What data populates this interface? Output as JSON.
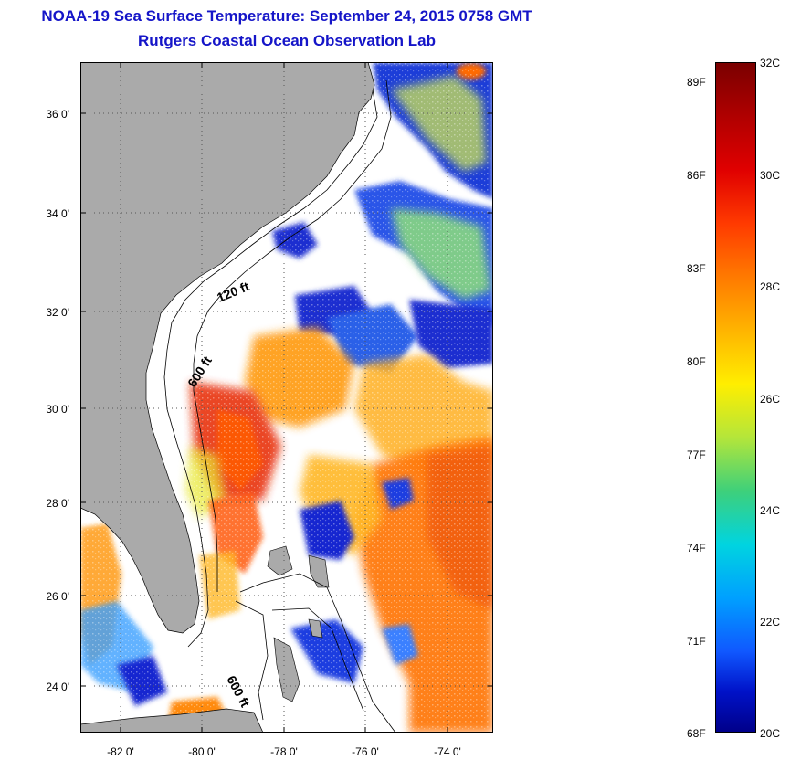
{
  "title": {
    "line1": "NOAA-19 Sea Surface Temperature:  September 24, 2015 0758 GMT",
    "line2": "Rutgers Coastal Ocean Observation Lab"
  },
  "map": {
    "lat_ticks": [
      {
        "value": 36,
        "label": "36 0'"
      },
      {
        "value": 34,
        "label": "34 0'"
      },
      {
        "value": 32,
        "label": "32 0'"
      },
      {
        "value": 30,
        "label": "30 0'"
      },
      {
        "value": 28,
        "label": "28 0'"
      },
      {
        "value": 26,
        "label": "26 0'"
      },
      {
        "value": 24,
        "label": "24 0'"
      }
    ],
    "lon_ticks": [
      {
        "value": -82,
        "label": "-82 0'"
      },
      {
        "value": -80,
        "label": "-80 0'"
      },
      {
        "value": -78,
        "label": "-78 0'"
      },
      {
        "value": -76,
        "label": "-76 0'"
      },
      {
        "value": -74,
        "label": "-74 0'"
      }
    ],
    "contour_labels": [
      "120 ft",
      "600 ft",
      "600 ft"
    ],
    "colors": {
      "land": "#aaaaaa",
      "grid": "#555555"
    }
  },
  "colorbar": {
    "celsius_labels": [
      "32C",
      "30C",
      "28C",
      "26C",
      "24C",
      "22C",
      "20C"
    ],
    "fahrenheit_labels": [
      "89F",
      "86F",
      "83F",
      "80F",
      "77F",
      "74F",
      "71F",
      "68F"
    ]
  }
}
